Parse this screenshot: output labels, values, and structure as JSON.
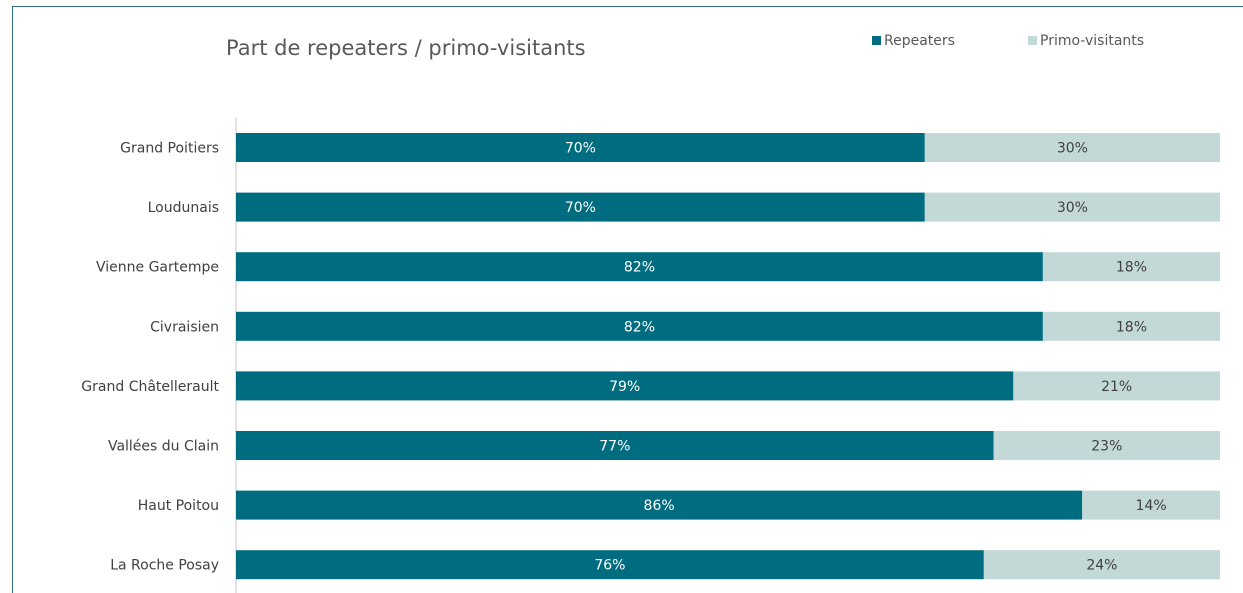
{
  "chart_data": {
    "type": "bar",
    "orientation": "horizontal",
    "stacked": true,
    "percent": true,
    "title": "Part de repeaters / primo-visitants",
    "categories": [
      "Grand Poitiers",
      "Loudunais",
      "Vienne Gartempe",
      "Civraisien",
      "Grand Châtellerault",
      "Vallées du Clain",
      "Haut Poitou",
      "La Roche Posay"
    ],
    "series": [
      {
        "name": "Repeaters",
        "values": [
          70,
          70,
          82,
          82,
          79,
          77,
          86,
          76
        ],
        "color": "#006c7f",
        "label_color": "#ffffff"
      },
      {
        "name": "Primo-visitants",
        "values": [
          30,
          30,
          18,
          18,
          21,
          23,
          14,
          24
        ],
        "color": "#c3d9d8",
        "label_color": "#404040"
      }
    ],
    "xlim": [
      0,
      100
    ],
    "value_suffix": "%",
    "legend": "top-right",
    "grid": false
  }
}
